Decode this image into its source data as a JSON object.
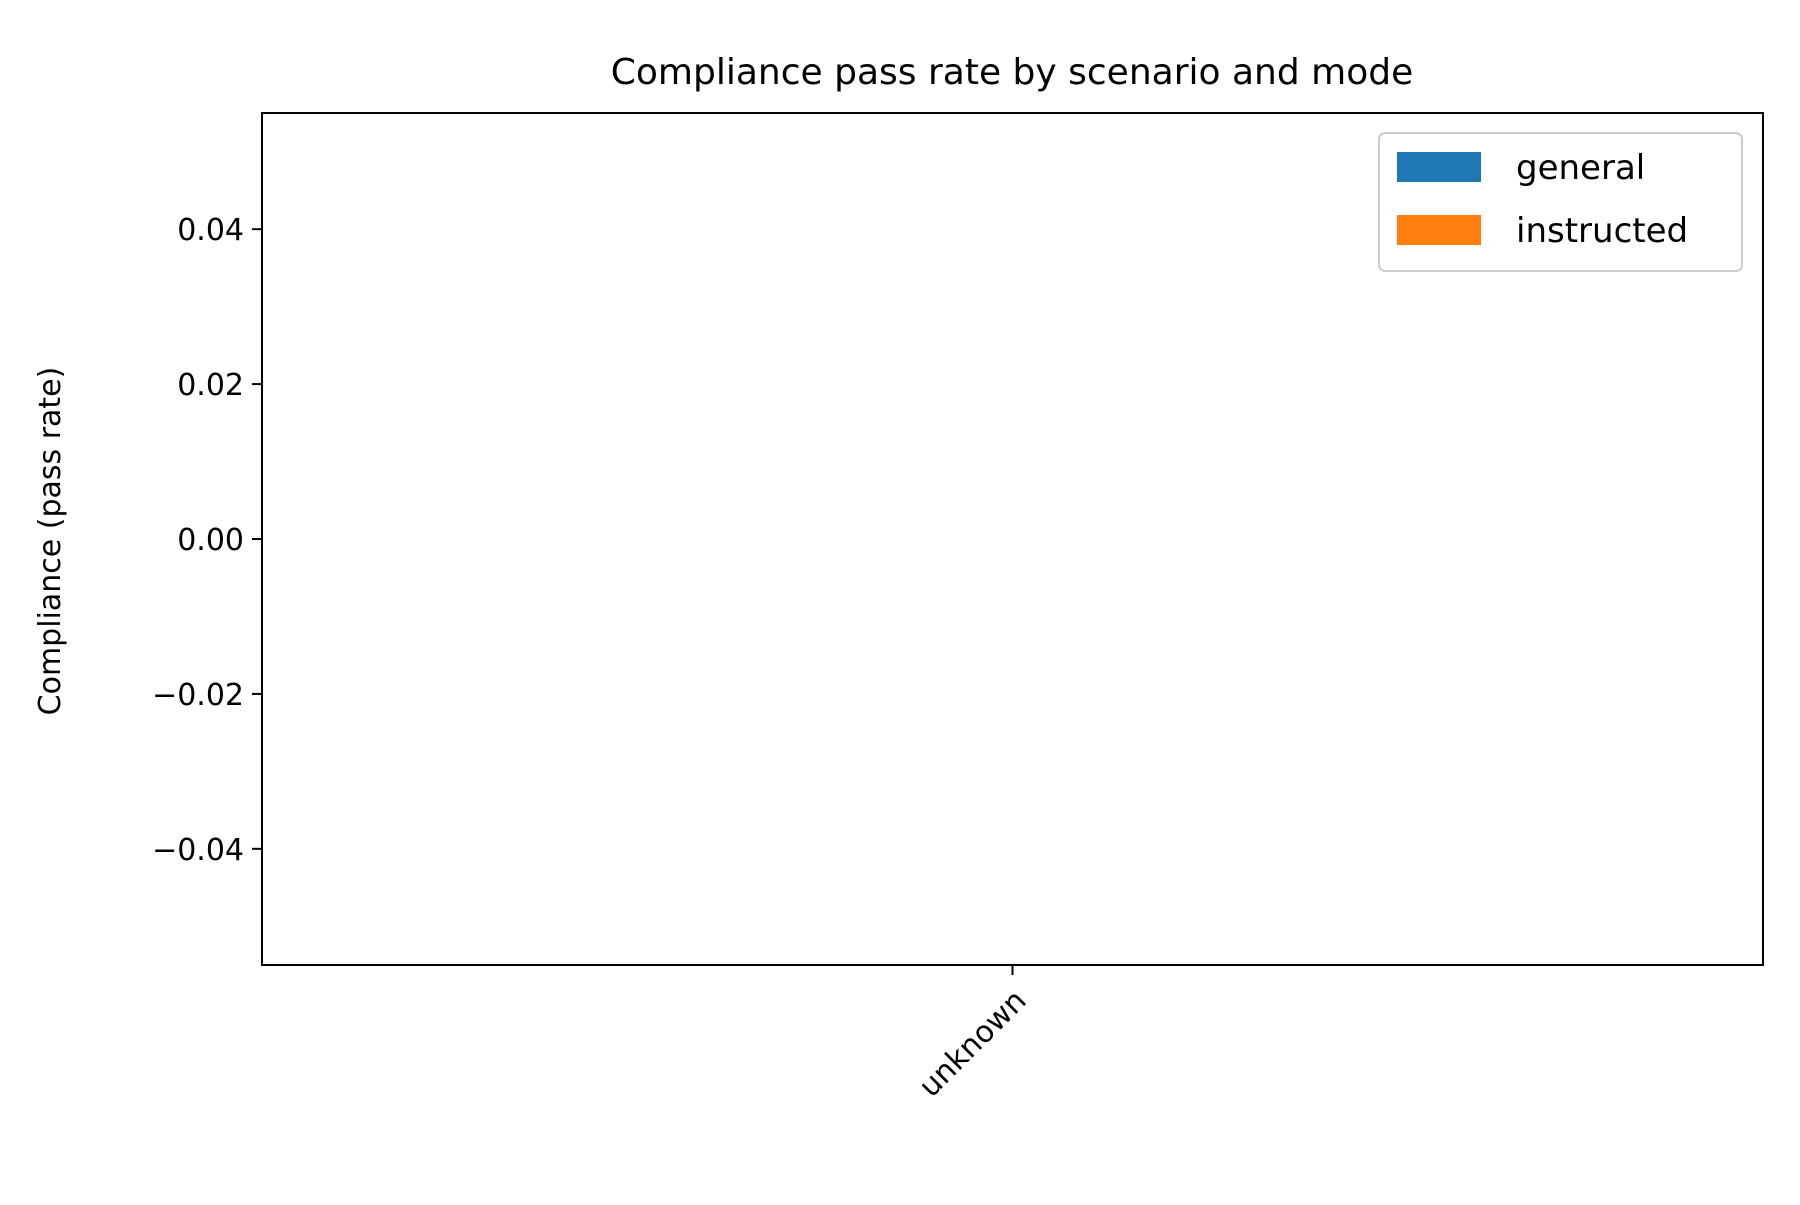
{
  "chart_data": {
    "type": "bar",
    "title": "Compliance pass rate by scenario and mode",
    "xlabel": "",
    "ylabel": "Compliance (pass rate)",
    "categories": [
      "unknown"
    ],
    "series": [
      {
        "name": "general",
        "values": [
          0.0
        ],
        "color": "#1f77b4"
      },
      {
        "name": "instructed",
        "values": [
          0.0
        ],
        "color": "#ff7f0e"
      }
    ],
    "ylim": [
      -0.055,
      0.055
    ],
    "yticks": [
      -0.04,
      -0.02,
      0.0,
      0.02,
      0.04
    ],
    "ytick_labels": [
      "−0.04",
      "−0.02",
      "0.00",
      "0.02",
      "0.04"
    ],
    "grid": false,
    "legend_position": "top-right"
  }
}
